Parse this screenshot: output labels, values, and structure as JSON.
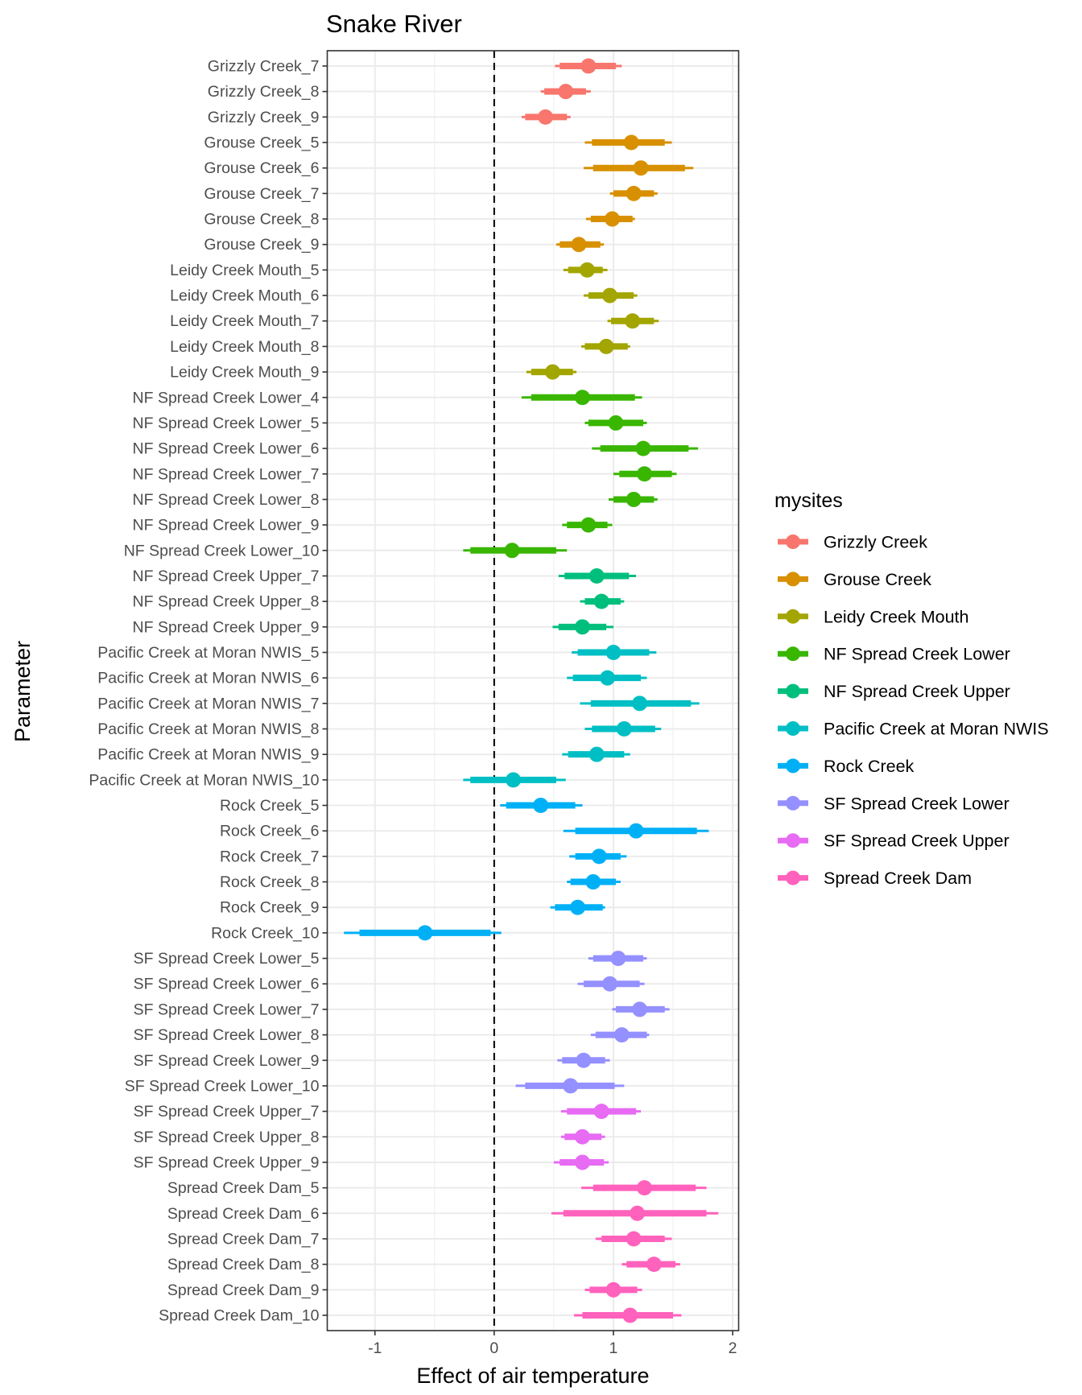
{
  "chart_data": {
    "type": "interval",
    "title": "Snake River",
    "xlabel": "Effect of air temperature",
    "ylabel": "Parameter",
    "xlim": [
      -1.4,
      2.05
    ],
    "xticks": [
      -1,
      0,
      1,
      2
    ],
    "xtick_labels": [
      "-1",
      "0",
      "1",
      "2"
    ],
    "reference_line": 0,
    "grid": true,
    "legend": {
      "title": "mysites",
      "placement": "right",
      "entries": [
        {
          "name": "Grizzly Creek",
          "color": "#F8766D"
        },
        {
          "name": "Grouse Creek",
          "color": "#D89000"
        },
        {
          "name": "Leidy Creek Mouth",
          "color": "#A3A500"
        },
        {
          "name": "NF Spread Creek Lower",
          "color": "#39B600"
        },
        {
          "name": "NF Spread Creek Upper",
          "color": "#00BF7D"
        },
        {
          "name": "Pacific Creek at Moran NWIS",
          "color": "#00BFC4"
        },
        {
          "name": "Rock Creek",
          "color": "#00B0F6"
        },
        {
          "name": "SF Spread Creek Lower",
          "color": "#9590FF"
        },
        {
          "name": "SF Spread Creek Upper",
          "color": "#E76BF3"
        },
        {
          "name": "Spread Creek Dam",
          "color": "#FF62BC"
        }
      ]
    },
    "rows": [
      {
        "label": "Grizzly Creek_7",
        "site": 0,
        "est": 0.79,
        "inner": [
          0.55,
          1.02
        ],
        "outer": [
          0.51,
          1.07
        ]
      },
      {
        "label": "Grizzly Creek_8",
        "site": 0,
        "est": 0.6,
        "inner": [
          0.42,
          0.77
        ],
        "outer": [
          0.39,
          0.81
        ]
      },
      {
        "label": "Grizzly Creek_9",
        "site": 0,
        "est": 0.43,
        "inner": [
          0.26,
          0.61
        ],
        "outer": [
          0.23,
          0.64
        ]
      },
      {
        "label": "Grouse Creek_5",
        "site": 1,
        "est": 1.15,
        "inner": [
          0.82,
          1.43
        ],
        "outer": [
          0.76,
          1.49
        ]
      },
      {
        "label": "Grouse Creek_6",
        "site": 1,
        "est": 1.23,
        "inner": [
          0.83,
          1.6
        ],
        "outer": [
          0.75,
          1.67
        ]
      },
      {
        "label": "Grouse Creek_7",
        "site": 1,
        "est": 1.17,
        "inner": [
          1.0,
          1.34
        ],
        "outer": [
          0.97,
          1.37
        ]
      },
      {
        "label": "Grouse Creek_8",
        "site": 1,
        "est": 0.99,
        "inner": [
          0.81,
          1.16
        ],
        "outer": [
          0.77,
          1.18
        ]
      },
      {
        "label": "Grouse Creek_9",
        "site": 1,
        "est": 0.71,
        "inner": [
          0.55,
          0.89
        ],
        "outer": [
          0.52,
          0.92
        ]
      },
      {
        "label": "Leidy Creek Mouth_5",
        "site": 2,
        "est": 0.78,
        "inner": [
          0.62,
          0.91
        ],
        "outer": [
          0.58,
          0.95
        ]
      },
      {
        "label": "Leidy Creek Mouth_6",
        "site": 2,
        "est": 0.97,
        "inner": [
          0.79,
          1.17
        ],
        "outer": [
          0.75,
          1.2
        ]
      },
      {
        "label": "Leidy Creek Mouth_7",
        "site": 2,
        "est": 1.16,
        "inner": [
          0.98,
          1.34
        ],
        "outer": [
          0.95,
          1.38
        ]
      },
      {
        "label": "Leidy Creek Mouth_8",
        "site": 2,
        "est": 0.94,
        "inner": [
          0.76,
          1.12
        ],
        "outer": [
          0.73,
          1.14
        ]
      },
      {
        "label": "Leidy Creek Mouth_9",
        "site": 2,
        "est": 0.49,
        "inner": [
          0.31,
          0.66
        ],
        "outer": [
          0.27,
          0.69
        ]
      },
      {
        "label": "NF Spread Creek Lower_4",
        "site": 3,
        "est": 0.74,
        "inner": [
          0.31,
          1.18
        ],
        "outer": [
          0.23,
          1.24
        ]
      },
      {
        "label": "NF Spread Creek Lower_5",
        "site": 3,
        "est": 1.02,
        "inner": [
          0.79,
          1.25
        ],
        "outer": [
          0.76,
          1.28
        ]
      },
      {
        "label": "NF Spread Creek Lower_6",
        "site": 3,
        "est": 1.25,
        "inner": [
          0.89,
          1.63
        ],
        "outer": [
          0.82,
          1.71
        ]
      },
      {
        "label": "NF Spread Creek Lower_7",
        "site": 3,
        "est": 1.26,
        "inner": [
          1.05,
          1.49
        ],
        "outer": [
          1.0,
          1.53
        ]
      },
      {
        "label": "NF Spread Creek Lower_8",
        "site": 3,
        "est": 1.17,
        "inner": [
          1.0,
          1.34
        ],
        "outer": [
          0.96,
          1.37
        ]
      },
      {
        "label": "NF Spread Creek Lower_9",
        "site": 3,
        "est": 0.79,
        "inner": [
          0.61,
          0.95
        ],
        "outer": [
          0.57,
          0.99
        ]
      },
      {
        "label": "NF Spread Creek Lower_10",
        "site": 3,
        "est": 0.15,
        "inner": [
          -0.2,
          0.52
        ],
        "outer": [
          -0.26,
          0.61
        ]
      },
      {
        "label": "NF Spread Creek Upper_7",
        "site": 4,
        "est": 0.86,
        "inner": [
          0.59,
          1.13
        ],
        "outer": [
          0.54,
          1.19
        ]
      },
      {
        "label": "NF Spread Creek Upper_8",
        "site": 4,
        "est": 0.9,
        "inner": [
          0.76,
          1.06
        ],
        "outer": [
          0.72,
          1.09
        ]
      },
      {
        "label": "NF Spread Creek Upper_9",
        "site": 4,
        "est": 0.74,
        "inner": [
          0.54,
          0.94
        ],
        "outer": [
          0.49,
          1.0
        ]
      },
      {
        "label": "Pacific Creek at Moran NWIS_5",
        "site": 5,
        "est": 1.0,
        "inner": [
          0.7,
          1.3
        ],
        "outer": [
          0.65,
          1.36
        ]
      },
      {
        "label": "Pacific Creek at Moran NWIS_6",
        "site": 5,
        "est": 0.95,
        "inner": [
          0.66,
          1.23
        ],
        "outer": [
          0.61,
          1.28
        ]
      },
      {
        "label": "Pacific Creek at Moran NWIS_7",
        "site": 5,
        "est": 1.22,
        "inner": [
          0.81,
          1.65
        ],
        "outer": [
          0.72,
          1.72
        ]
      },
      {
        "label": "Pacific Creek at Moran NWIS_8",
        "site": 5,
        "est": 1.09,
        "inner": [
          0.82,
          1.35
        ],
        "outer": [
          0.76,
          1.4
        ]
      },
      {
        "label": "Pacific Creek at Moran NWIS_9",
        "site": 5,
        "est": 0.86,
        "inner": [
          0.62,
          1.09
        ],
        "outer": [
          0.57,
          1.14
        ]
      },
      {
        "label": "Pacific Creek at Moran NWIS_10",
        "site": 5,
        "est": 0.16,
        "inner": [
          -0.2,
          0.52
        ],
        "outer": [
          -0.26,
          0.6
        ]
      },
      {
        "label": "Rock Creek_5",
        "site": 6,
        "est": 0.39,
        "inner": [
          0.1,
          0.68
        ],
        "outer": [
          0.05,
          0.74
        ]
      },
      {
        "label": "Rock Creek_6",
        "site": 6,
        "est": 1.19,
        "inner": [
          0.68,
          1.7
        ],
        "outer": [
          0.58,
          1.8
        ]
      },
      {
        "label": "Rock Creek_7",
        "site": 6,
        "est": 0.88,
        "inner": [
          0.68,
          1.06
        ],
        "outer": [
          0.63,
          1.11
        ]
      },
      {
        "label": "Rock Creek_8",
        "site": 6,
        "est": 0.83,
        "inner": [
          0.64,
          1.02
        ],
        "outer": [
          0.61,
          1.06
        ]
      },
      {
        "label": "Rock Creek_9",
        "site": 6,
        "est": 0.7,
        "inner": [
          0.51,
          0.91
        ],
        "outer": [
          0.47,
          0.93
        ]
      },
      {
        "label": "Rock Creek_10",
        "site": 6,
        "est": -0.58,
        "inner": [
          -1.13,
          -0.03
        ],
        "outer": [
          -1.26,
          0.06
        ]
      },
      {
        "label": "SF Spread Creek Lower_5",
        "site": 7,
        "est": 1.04,
        "inner": [
          0.83,
          1.25
        ],
        "outer": [
          0.79,
          1.28
        ]
      },
      {
        "label": "SF Spread Creek Lower_6",
        "site": 7,
        "est": 0.97,
        "inner": [
          0.75,
          1.22
        ],
        "outer": [
          0.7,
          1.26
        ]
      },
      {
        "label": "SF Spread Creek Lower_7",
        "site": 7,
        "est": 1.22,
        "inner": [
          1.02,
          1.43
        ],
        "outer": [
          0.99,
          1.47
        ]
      },
      {
        "label": "SF Spread Creek Lower_8",
        "site": 7,
        "est": 1.07,
        "inner": [
          0.85,
          1.28
        ],
        "outer": [
          0.81,
          1.3
        ]
      },
      {
        "label": "SF Spread Creek Lower_9",
        "site": 7,
        "est": 0.75,
        "inner": [
          0.57,
          0.93
        ],
        "outer": [
          0.53,
          0.97
        ]
      },
      {
        "label": "SF Spread Creek Lower_10",
        "site": 7,
        "est": 0.64,
        "inner": [
          0.26,
          1.01
        ],
        "outer": [
          0.18,
          1.09
        ]
      },
      {
        "label": "SF Spread Creek Upper_7",
        "site": 8,
        "est": 0.9,
        "inner": [
          0.61,
          1.19
        ],
        "outer": [
          0.56,
          1.23
        ]
      },
      {
        "label": "SF Spread Creek Upper_8",
        "site": 8,
        "est": 0.74,
        "inner": [
          0.59,
          0.9
        ],
        "outer": [
          0.56,
          0.93
        ]
      },
      {
        "label": "SF Spread Creek Upper_9",
        "site": 8,
        "est": 0.74,
        "inner": [
          0.55,
          0.92
        ],
        "outer": [
          0.5,
          0.96
        ]
      },
      {
        "label": "Spread Creek Dam_5",
        "site": 9,
        "est": 1.26,
        "inner": [
          0.83,
          1.69
        ],
        "outer": [
          0.73,
          1.78
        ]
      },
      {
        "label": "Spread Creek Dam_6",
        "site": 9,
        "est": 1.2,
        "inner": [
          0.58,
          1.78
        ],
        "outer": [
          0.48,
          1.88
        ]
      },
      {
        "label": "Spread Creek Dam_7",
        "site": 9,
        "est": 1.17,
        "inner": [
          0.9,
          1.43
        ],
        "outer": [
          0.85,
          1.49
        ]
      },
      {
        "label": "Spread Creek Dam_8",
        "site": 9,
        "est": 1.34,
        "inner": [
          1.11,
          1.52
        ],
        "outer": [
          1.07,
          1.56
        ]
      },
      {
        "label": "Spread Creek Dam_9",
        "site": 9,
        "est": 1.0,
        "inner": [
          0.8,
          1.2
        ],
        "outer": [
          0.76,
          1.24
        ]
      },
      {
        "label": "Spread Creek Dam_10",
        "site": 9,
        "est": 1.14,
        "inner": [
          0.74,
          1.5
        ],
        "outer": [
          0.67,
          1.57
        ]
      }
    ]
  }
}
